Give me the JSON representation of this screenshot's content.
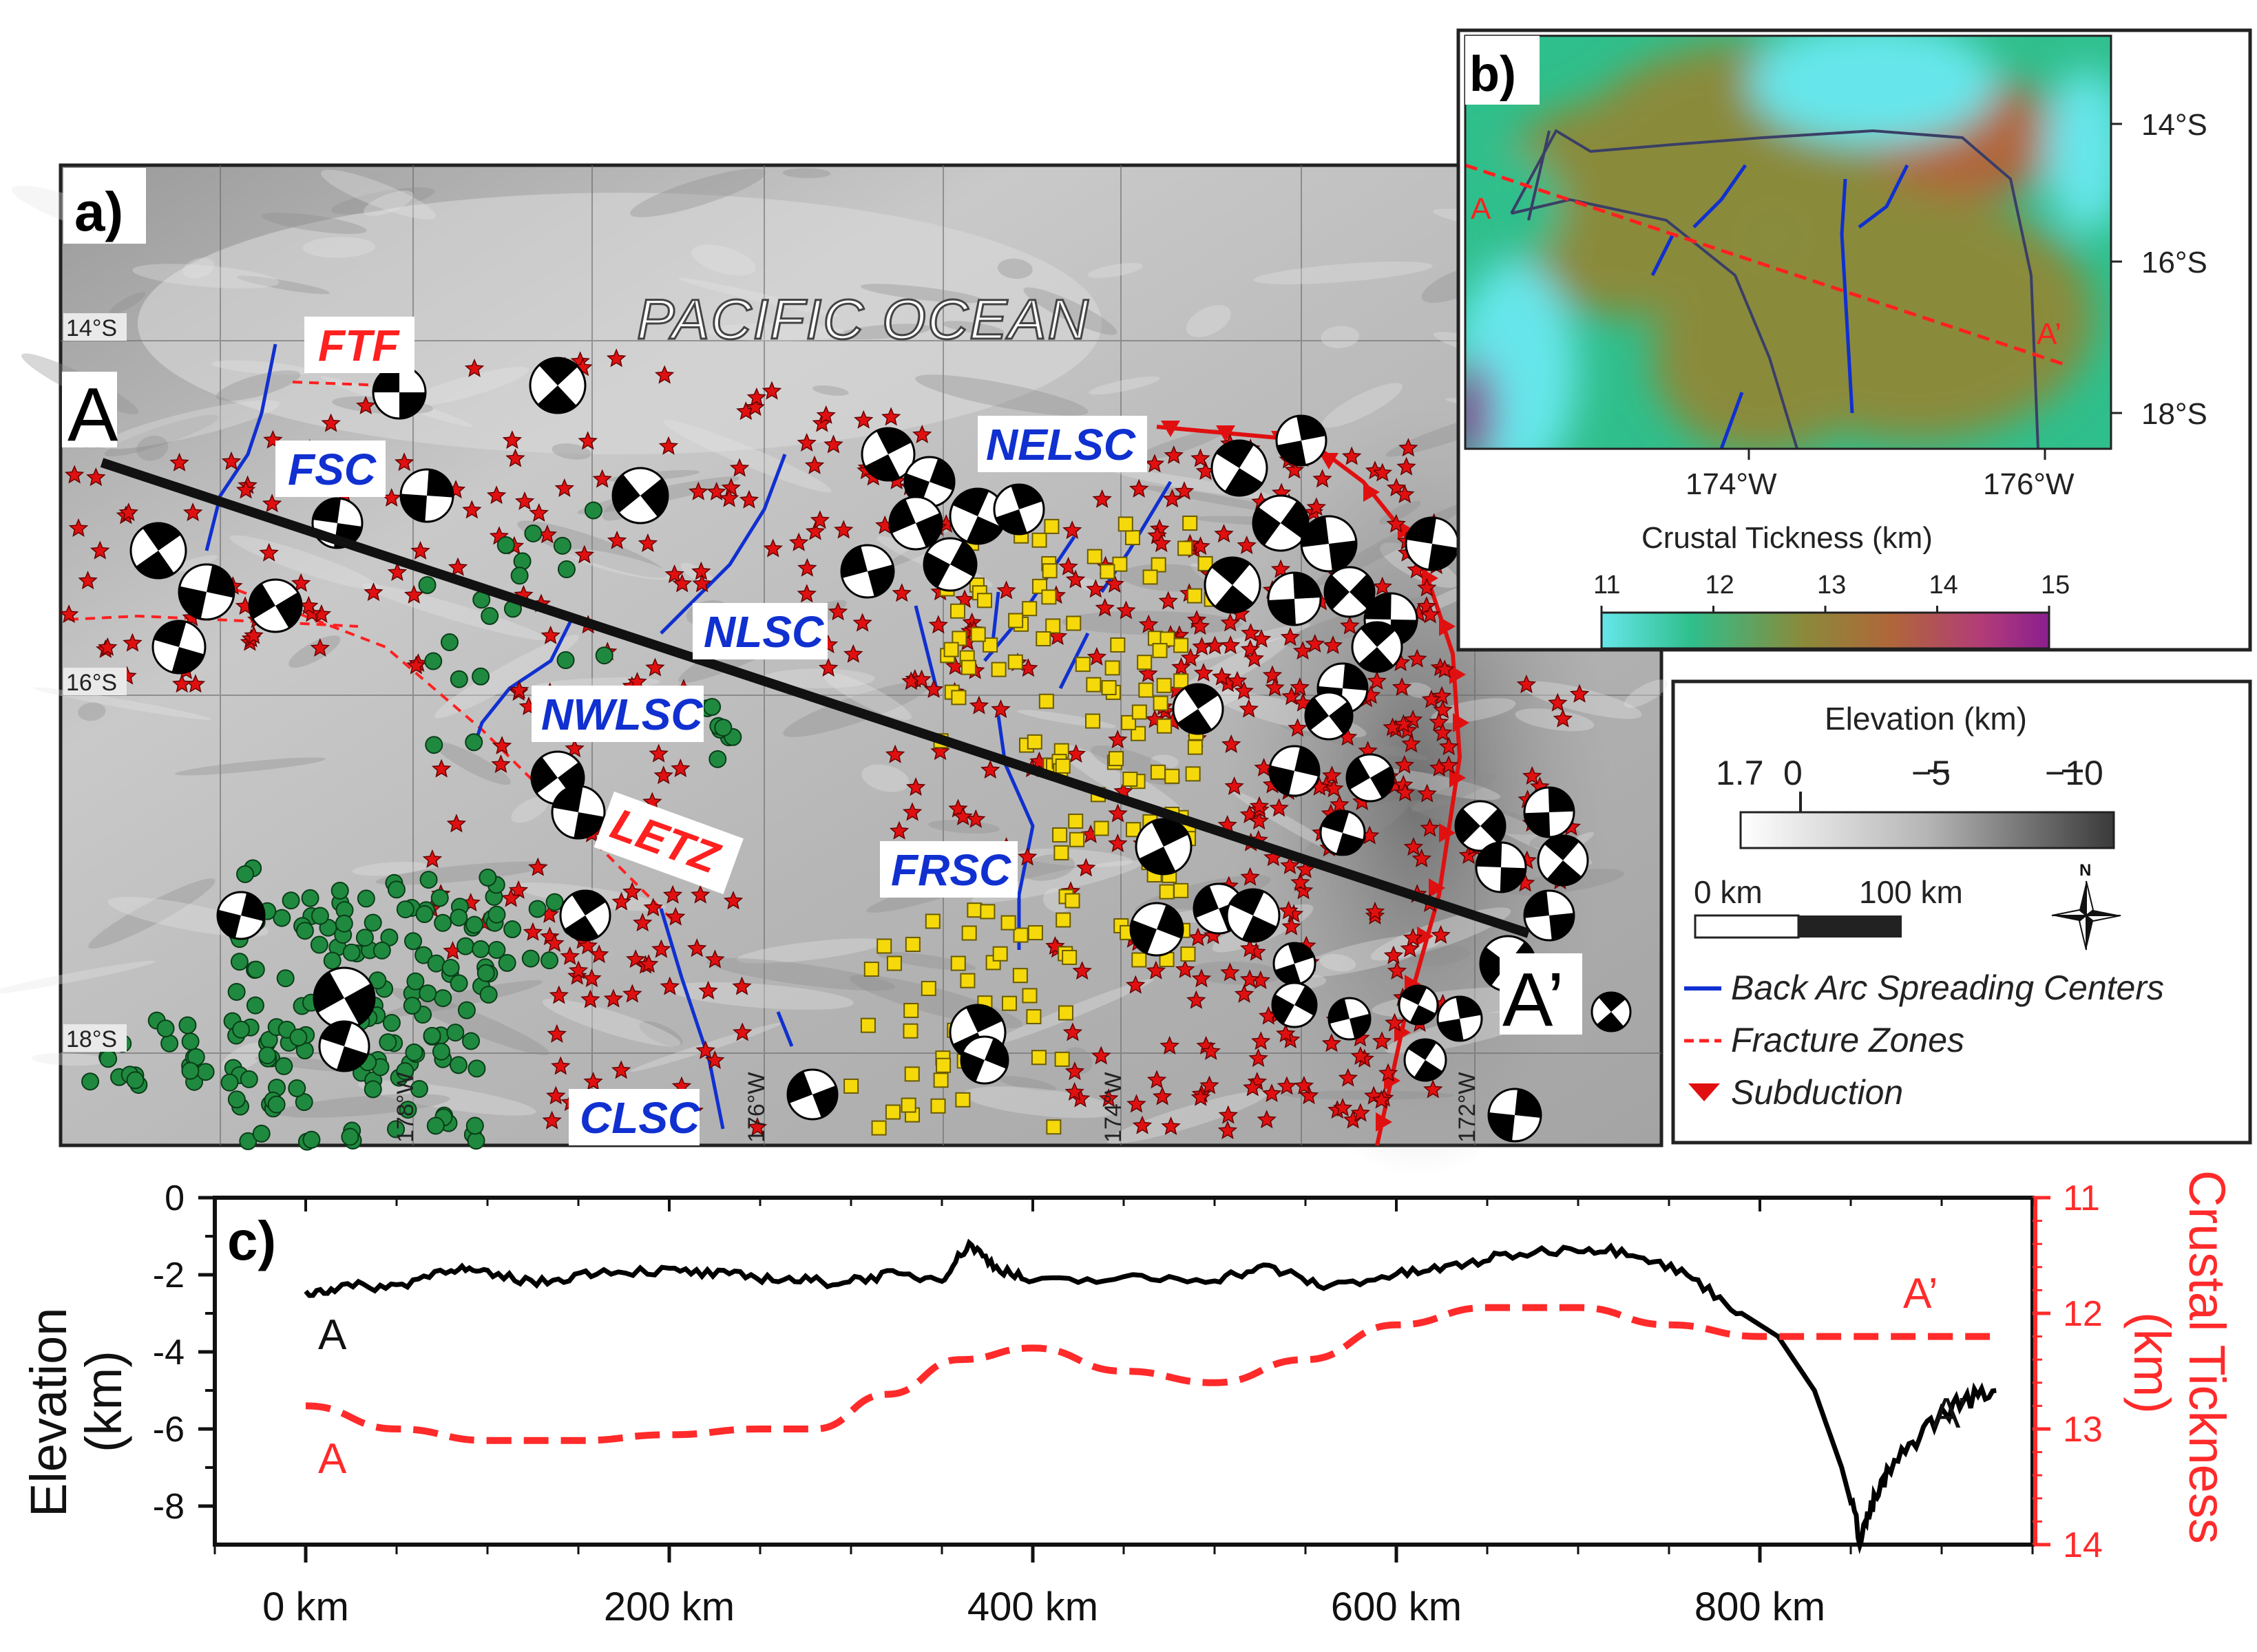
{
  "panel_a": {
    "panel_label": "a)",
    "ocean_label": "PACIFIC OCEAN",
    "lat_labels": [
      "14°S",
      "16°S",
      "18°S"
    ],
    "lon_labels": [
      "178°W",
      "176°W",
      "174°W",
      "172°W"
    ],
    "profile_start": "A",
    "profile_end": "A’",
    "features": {
      "ftf": "FTF",
      "fsc": "FSC",
      "nelsc": "NELSC",
      "nlsc": "NLSC",
      "nwlsc": "NWLSC",
      "letz": "LETZ",
      "frsc": "FRSC",
      "clsc": "CLSC"
    }
  },
  "panel_b": {
    "panel_label": "b)",
    "lat_labels": [
      "14°S",
      "16°S",
      "18°S"
    ],
    "lon_labels": [
      "174°W",
      "176°W"
    ],
    "profile_start": "A",
    "profile_end": "A’",
    "colorbar_title": "Crustal Tickness (km)",
    "colorbar_ticks": [
      "11",
      "12",
      "13",
      "14",
      "15"
    ],
    "colorbar_colors": [
      "#66e6ea",
      "#2fbf8c",
      "#8a8a3a",
      "#b0663a",
      "#b23c78",
      "#8a1f8f"
    ]
  },
  "legend": {
    "elevation_title": "Elevation (km)",
    "elevation_ticks": [
      "1.7",
      "0",
      "−5",
      "−10"
    ],
    "scale_zero": "0 km",
    "scale_end": "100 km",
    "north_label": "N",
    "items": {
      "spreading": "Back Arc Spreading Centers",
      "fracture": "Fracture Zones",
      "subduction": "Subduction"
    },
    "colors": {
      "spreading": "#1030d0",
      "fracture": "#ff2020",
      "subduction": "#e01010"
    }
  },
  "panel_c": {
    "panel_label": "c)",
    "y_left_label_line1": "Elevation",
    "y_left_label_line2": "(km)",
    "y_right_label_line1": "Crustal Tickness",
    "y_right_label_line2": "(km)",
    "y_left_ticks": [
      "0",
      "-2",
      "-4",
      "-6",
      "-8"
    ],
    "y_right_ticks": [
      "11",
      "12",
      "13",
      "14"
    ],
    "x_ticks": [
      "0 km",
      "200 km",
      "400 km",
      "600 km",
      "800 km"
    ],
    "elev_start": "A",
    "elev_end": "A’",
    "crust_start": "A",
    "crust_end": "A’",
    "colors": {
      "elevation": "#000000",
      "crustal": "#ff2a2a"
    }
  },
  "chart_data": {
    "type": "line",
    "x_unit": "km",
    "xlim": [
      -50,
      950
    ],
    "ylim_left": [
      -9,
      0
    ],
    "ylim_right": [
      11,
      14
    ],
    "grid": false,
    "series": [
      {
        "axis": "left",
        "x": [
          0,
          20,
          50,
          80,
          100,
          130,
          160,
          200,
          230,
          260,
          290,
          320,
          350,
          365,
          380,
          400,
          450,
          500,
          530,
          560,
          600,
          630,
          660,
          700,
          730,
          760,
          790,
          810,
          830,
          845,
          855,
          862,
          870,
          890,
          910,
          930
        ],
        "values": [
          -2.5,
          -2.3,
          -2.3,
          -1.8,
          -2.0,
          -2.2,
          -1.9,
          -1.9,
          -2.0,
          -2.1,
          -2.2,
          -2.0,
          -2.1,
          -1.2,
          -1.8,
          -2.2,
          -2.1,
          -2.1,
          -1.8,
          -2.3,
          -2.0,
          -1.8,
          -1.5,
          -1.3,
          -1.4,
          -2.0,
          -3.0,
          -3.6,
          -5.0,
          -7.0,
          -8.8,
          -8.0,
          -7.2,
          -6.0,
          -5.3,
          -5.0
        ]
      },
      {
        "axis": "right",
        "x": [
          0,
          50,
          100,
          150,
          200,
          250,
          280,
          320,
          360,
          400,
          450,
          500,
          550,
          600,
          650,
          700,
          750,
          800,
          850,
          900,
          930
        ],
        "values": [
          12.8,
          13.0,
          13.1,
          13.1,
          13.05,
          13.0,
          13.0,
          12.7,
          12.4,
          12.3,
          12.5,
          12.6,
          12.4,
          12.1,
          11.95,
          11.95,
          12.1,
          12.2,
          12.2,
          12.2,
          12.2
        ]
      }
    ]
  }
}
